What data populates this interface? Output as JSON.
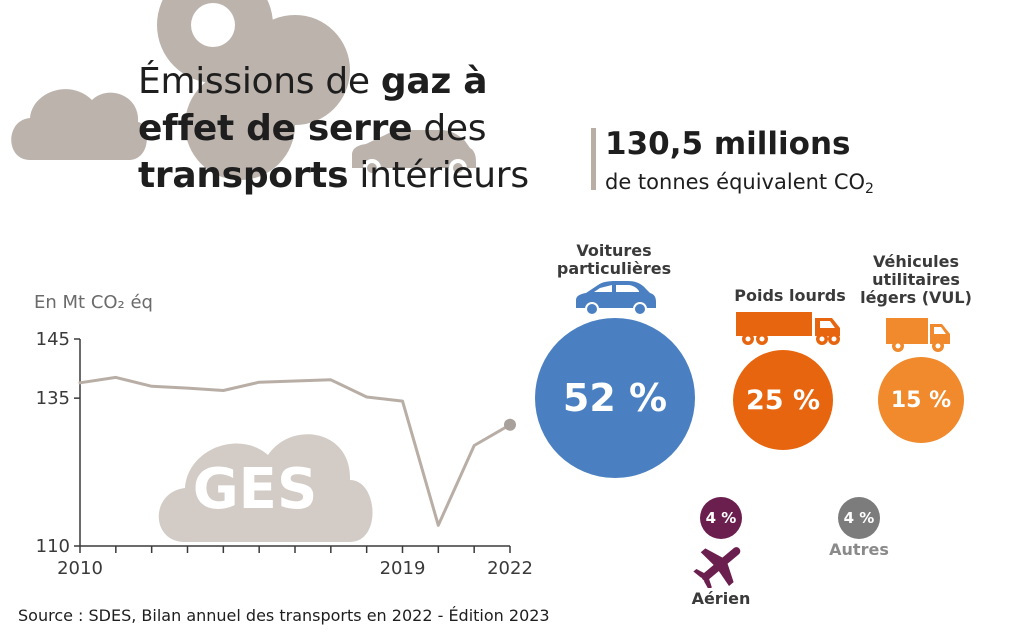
{
  "colors": {
    "beige": "#bcb3ac",
    "blue": "#4a80c2",
    "dark_orange": "#e8650f",
    "orange": "#f08a2c",
    "purple": "#6b1f4f",
    "grey": "#7c7c7c",
    "text": "#1e1e1e"
  },
  "title": {
    "part1": "Émissions de ",
    "bold1": "gaz à effet de serre",
    "part2": " des ",
    "bold2": "transports",
    "part3": " intérieurs"
  },
  "total": {
    "value": "130,5 millions",
    "unit": "de tonnes équivalent CO",
    "unit_sub": "2"
  },
  "chart_data": {
    "type": "line",
    "ylabel": "En Mt CO₂ éq",
    "ylim": [
      110,
      145
    ],
    "yticks": [
      "145",
      "135",
      "110"
    ],
    "xticks": [
      "2010",
      "2019",
      "2022"
    ],
    "xlim": [
      2010,
      2022
    ],
    "x": [
      2010,
      2011,
      2012,
      2013,
      2014,
      2015,
      2016,
      2017,
      2018,
      2019,
      2020,
      2021,
      2022
    ],
    "y": [
      137.6,
      138.5,
      137.0,
      136.7,
      136.3,
      137.7,
      137.9,
      138.1,
      135.2,
      134.5,
      113.5,
      127.0,
      130.5
    ],
    "badge": "GES"
  },
  "shares": [
    {
      "key": "voitures",
      "label": "Voitures particulières",
      "value": "52 %",
      "icon": "car-icon"
    },
    {
      "key": "poids_lourds",
      "label": "Poids lourds",
      "value": "25 %",
      "icon": "truck-icon"
    },
    {
      "key": "vul",
      "label": "Véhicules utilitaires légers (VUL)",
      "value": "15 %",
      "icon": "van-icon"
    },
    {
      "key": "aerien",
      "label": "Aérien",
      "value": "4 %",
      "icon": "plane-icon"
    },
    {
      "key": "autres",
      "label": "Autres",
      "value": "4 %",
      "icon": ""
    }
  ],
  "source": "Source : SDES, Bilan annuel des transports en 2022 - Édition 2023"
}
